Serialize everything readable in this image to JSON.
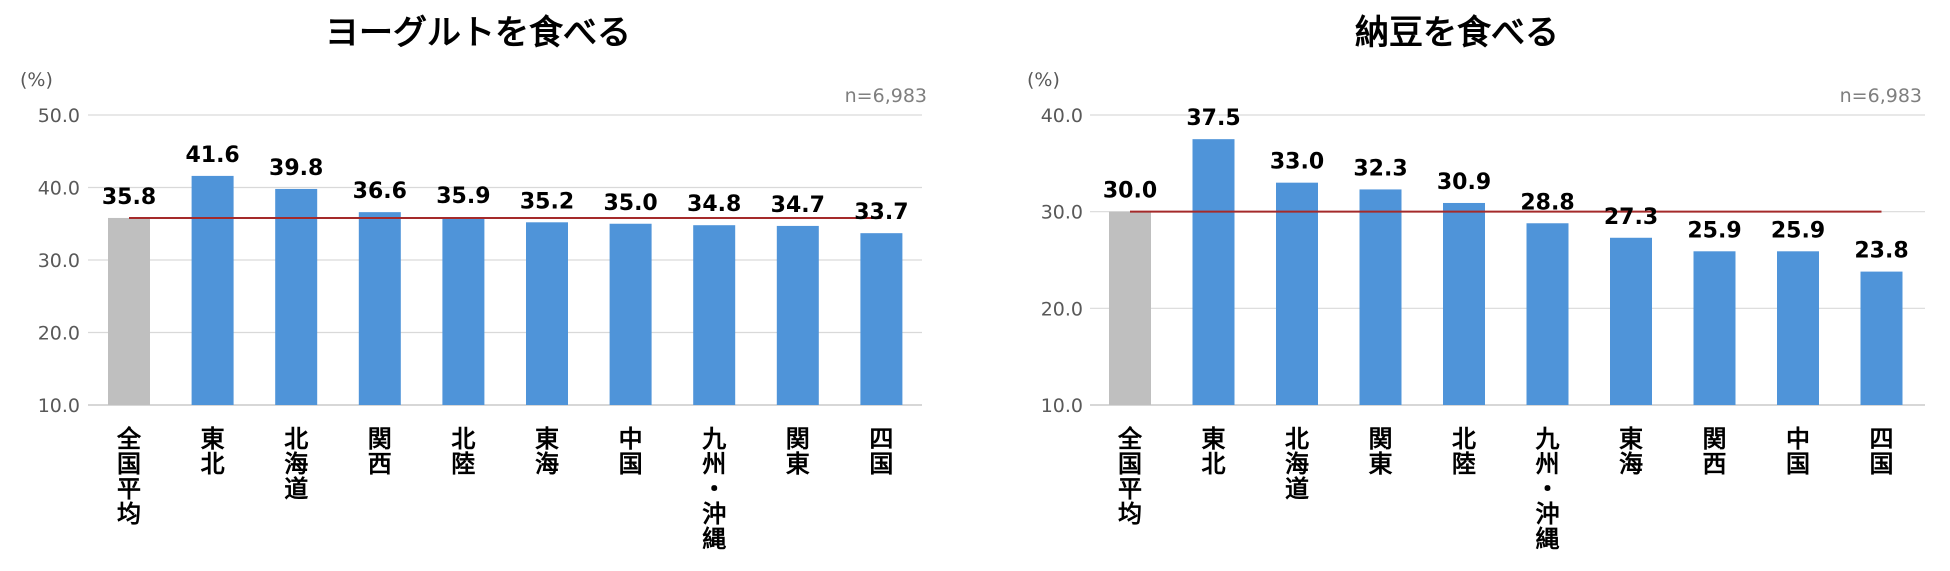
{
  "charts": [
    {
      "title": "ヨーグルトを食べる",
      "unit_label": "(%)",
      "n_label": "n=6,983",
      "chart_data": {
        "type": "bar",
        "categories": [
          "全国平均",
          "東北",
          "北海道",
          "関西",
          "北陸",
          "東海",
          "中国",
          "九州・沖縄",
          "関東",
          "四国"
        ],
        "category_lines": [
          [
            "全",
            "国",
            "平",
            "均"
          ],
          [
            "東",
            "北"
          ],
          [
            "北",
            "海",
            "道"
          ],
          [
            "関",
            "西"
          ],
          [
            "北",
            "陸"
          ],
          [
            "東",
            "海"
          ],
          [
            "中",
            "国"
          ],
          [
            "九",
            "州",
            "・",
            "沖",
            "縄"
          ],
          [
            "関",
            "東"
          ],
          [
            "四",
            "国"
          ]
        ],
        "values": [
          35.8,
          41.6,
          39.8,
          36.6,
          35.9,
          35.2,
          35.0,
          34.8,
          34.7,
          33.7
        ],
        "value_labels": [
          "35.8",
          "41.6",
          "39.8",
          "36.6",
          "35.9",
          "35.2",
          "35.0",
          "34.8",
          "34.7",
          "33.7"
        ],
        "yticks": [
          "10.0",
          "20.0",
          "30.0",
          "40.0",
          "50.0"
        ],
        "ylim": [
          10,
          50
        ],
        "reference_line": 35.8,
        "grid": true,
        "legend": "none",
        "colors": {
          "average_bar": "#bfbfbf",
          "region_bar": "#4f94d9",
          "reference_line": "#a52a2a",
          "grid": "#d9d9d9",
          "axis": "#bfbfbf"
        }
      }
    },
    {
      "title": "納豆を食べる",
      "unit_label": "(%)",
      "n_label": "n=6,983",
      "chart_data": {
        "type": "bar",
        "categories": [
          "全国平均",
          "東北",
          "北海道",
          "関東",
          "北陸",
          "九州・沖縄",
          "東海",
          "関西",
          "中国",
          "四国"
        ],
        "category_lines": [
          [
            "全",
            "国",
            "平",
            "均"
          ],
          [
            "東",
            "北"
          ],
          [
            "北",
            "海",
            "道"
          ],
          [
            "関",
            "東"
          ],
          [
            "北",
            "陸"
          ],
          [
            "九",
            "州",
            "・",
            "沖",
            "縄"
          ],
          [
            "東",
            "海"
          ],
          [
            "関",
            "西"
          ],
          [
            "中",
            "国"
          ],
          [
            "四",
            "国"
          ]
        ],
        "values": [
          30.0,
          37.5,
          33.0,
          32.3,
          30.9,
          28.8,
          27.3,
          25.9,
          25.9,
          23.8
        ],
        "value_labels": [
          "30.0",
          "37.5",
          "33.0",
          "32.3",
          "30.9",
          "28.8",
          "27.3",
          "25.9",
          "25.9",
          "23.8"
        ],
        "yticks": [
          "10.0",
          "20.0",
          "30.0",
          "40.0"
        ],
        "ylim": [
          10,
          40
        ],
        "reference_line": 30.0,
        "grid": true,
        "legend": "none",
        "colors": {
          "average_bar": "#bfbfbf",
          "region_bar": "#4f94d9",
          "reference_line": "#a52a2a",
          "grid": "#d9d9d9",
          "axis": "#bfbfbf"
        }
      }
    }
  ]
}
